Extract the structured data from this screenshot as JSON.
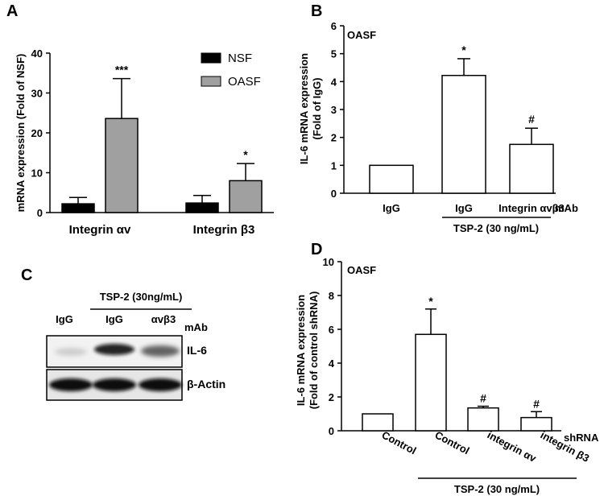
{
  "panels": {
    "A": {
      "label": "A"
    },
    "B": {
      "label": "B"
    },
    "C": {
      "label": "C"
    },
    "D": {
      "label": "D"
    }
  },
  "chart_data": [
    {
      "panel": "A",
      "type": "bar",
      "ylabel": "mRNA expression (Fold of NSF)",
      "ylim": [
        0,
        40
      ],
      "yticks": [
        "0",
        "10",
        "20",
        "30",
        "40"
      ],
      "categories": [
        "Integrin αv",
        "Integrin β3"
      ],
      "series": [
        {
          "name": "NSF",
          "color": "#000000",
          "values": [
            2.2,
            2.4
          ],
          "errors": [
            1.6,
            1.9
          ]
        },
        {
          "name": "OASF",
          "color": "#a0a0a0",
          "values": [
            23.6,
            8.0
          ],
          "errors": [
            10.0,
            4.3
          ]
        }
      ],
      "annotations": [
        "***",
        "*"
      ],
      "legend": "top-right"
    },
    {
      "panel": "B",
      "type": "bar",
      "title": "OASF",
      "ylabel_lines": [
        "IL-6 mRNA expression",
        "(Fold of IgG)"
      ],
      "ylim": [
        0,
        6
      ],
      "yticks": [
        "0",
        "1",
        "2",
        "3",
        "4",
        "5",
        "6"
      ],
      "categories": [
        "IgG",
        "IgG",
        "Integrin αvβ3"
      ],
      "values": [
        1.0,
        4.22,
        1.75
      ],
      "errors": [
        0,
        0.6,
        0.58
      ],
      "annotations": [
        "",
        "*",
        "#"
      ],
      "suffix_label": "mAb",
      "group_label": "TSP-2 (30 ng/mL)"
    },
    {
      "panel": "D",
      "type": "bar",
      "title": "OASF",
      "ylabel_lines": [
        "IL-6 mRNA expression",
        "(Fold of control shRNA)"
      ],
      "ylim": [
        0,
        10
      ],
      "yticks": [
        "0",
        "2",
        "4",
        "6",
        "8",
        "10"
      ],
      "categories": [
        "Control",
        "Control",
        "integrin αv",
        "integrin β3"
      ],
      "values": [
        1.0,
        5.7,
        1.35,
        0.78
      ],
      "errors": [
        0,
        1.5,
        0.1,
        0.35
      ],
      "annotations": [
        "",
        "*",
        "#",
        "#"
      ],
      "suffix_label": "shRNA",
      "group_label": "TSP-2 (30 ng/mL)"
    }
  ],
  "blot": {
    "treatment_label": "TSP-2 (30ng/mL)",
    "lanes": [
      "IgG",
      "IgG",
      "αvβ3"
    ],
    "suffix_label": "mAb",
    "bands": [
      "IL-6",
      "β-Actin"
    ]
  }
}
